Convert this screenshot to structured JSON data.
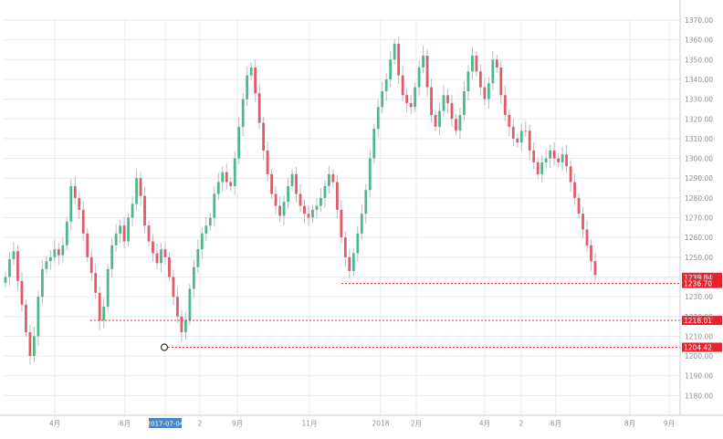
{
  "chart_data": {
    "type": "candlestick",
    "colors": {
      "up": "#4db88a",
      "down": "#e05a6a",
      "wick": "#b9bcc4",
      "level": "#e8232d",
      "grid": "#e6e9ee",
      "axis_text": "#8a8f99",
      "highlight_bg": "#4a86c7"
    },
    "ylim": [
      1170,
      1370
    ],
    "y_ticks": [
      "1180.00",
      "1190.00",
      "1200.00",
      "1210.00",
      "1220.00",
      "1230.00",
      "1240.00",
      "1250.00",
      "1260.00",
      "1270.00",
      "1280.00",
      "1290.00",
      "1300.00",
      "1310.00",
      "1320.00",
      "1330.00",
      "1340.00",
      "1350.00",
      "1360.00",
      "1370.00"
    ],
    "x_labels": [
      "4月",
      "6月",
      "2017-07-04",
      "2",
      "9月",
      "11月",
      "2018",
      "2月",
      "4月",
      "2",
      "6月",
      "8月",
      "9月"
    ],
    "x_highlight_label": "2017-07-04",
    "close_path": [
      1240,
      1249,
      1253,
      1238,
      1226,
      1212,
      1200,
      1210,
      1230,
      1244,
      1248,
      1250,
      1254,
      1251,
      1256,
      1268,
      1286,
      1280,
      1274,
      1262,
      1250,
      1242,
      1232,
      1218,
      1225,
      1244,
      1256,
      1262,
      1266,
      1258,
      1270,
      1277,
      1290,
      1281,
      1266,
      1258,
      1252,
      1247,
      1254,
      1250,
      1240,
      1230,
      1220,
      1212,
      1218,
      1234,
      1245,
      1254,
      1262,
      1266,
      1270,
      1282,
      1288,
      1293,
      1288,
      1286,
      1300,
      1316,
      1330,
      1342,
      1346,
      1333,
      1318,
      1304,
      1292,
      1282,
      1276,
      1271,
      1278,
      1286,
      1292,
      1282,
      1276,
      1272,
      1270,
      1274,
      1276,
      1280,
      1286,
      1292,
      1288,
      1274,
      1260,
      1250,
      1243,
      1252,
      1262,
      1272,
      1284,
      1300,
      1315,
      1326,
      1334,
      1340,
      1350,
      1358,
      1342,
      1332,
      1328,
      1326,
      1336,
      1346,
      1352,
      1336,
      1322,
      1316,
      1324,
      1332,
      1328,
      1320,
      1314,
      1322,
      1334,
      1344,
      1352,
      1344,
      1336,
      1330,
      1338,
      1350,
      1346,
      1332,
      1322,
      1316,
      1310,
      1308,
      1314,
      1314,
      1304,
      1298,
      1292,
      1298,
      1300,
      1304,
      1300,
      1298,
      1302,
      1296,
      1288,
      1280,
      1272,
      1264,
      1256,
      1248,
      1241
    ],
    "levels": [
      {
        "label": "1239.84",
        "value": 1239.84
      },
      {
        "label": "1236.70",
        "value": 1236.7
      },
      {
        "label": "1218.01",
        "value": 1218.01
      },
      {
        "label": "1204.42",
        "value": 1204.42
      }
    ]
  }
}
